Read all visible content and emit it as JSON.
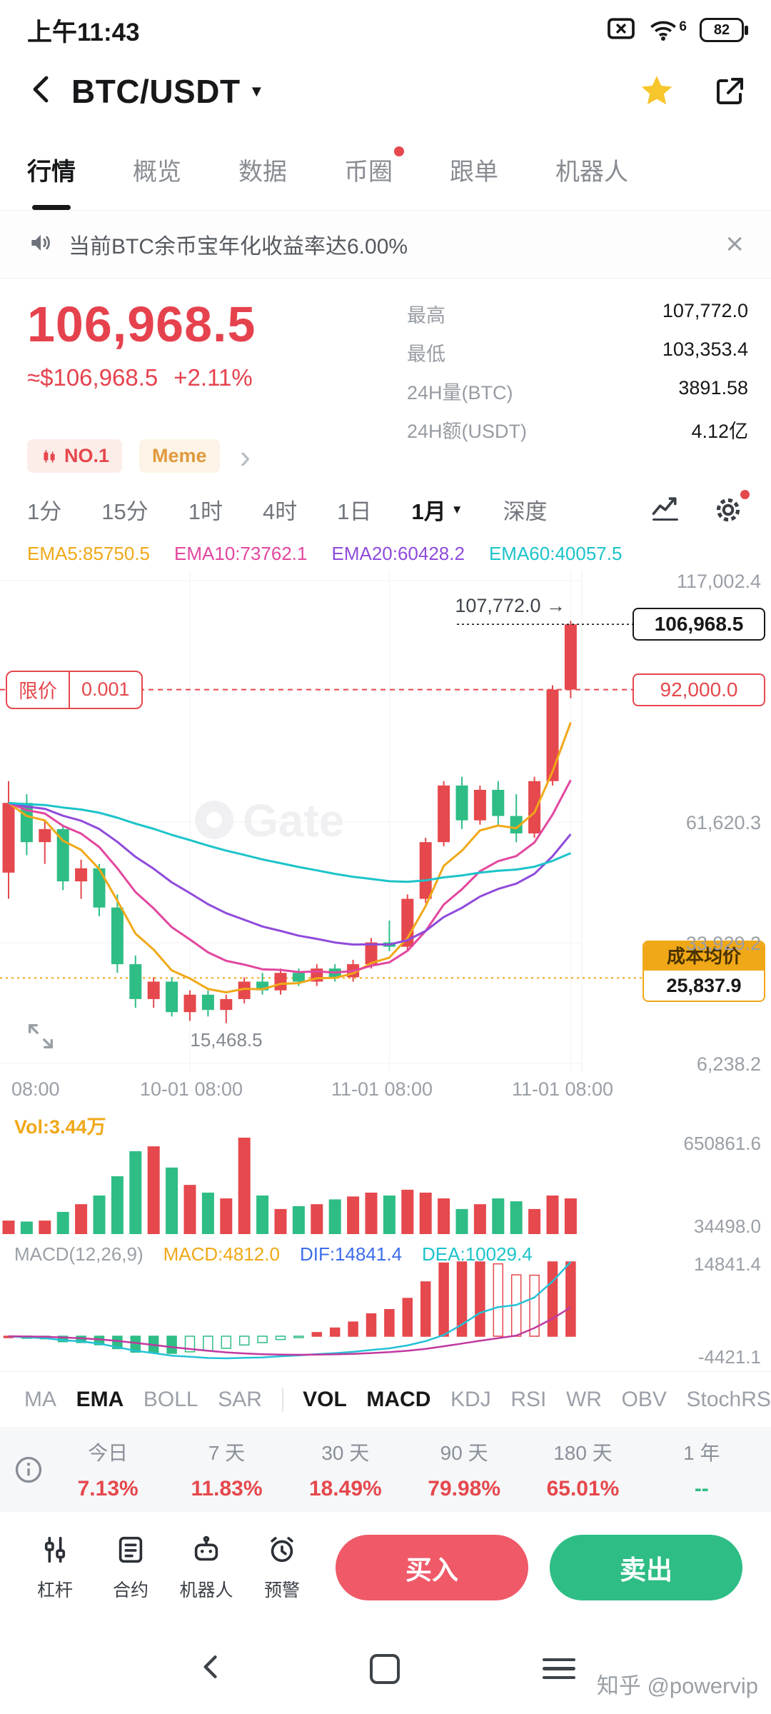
{
  "colors": {
    "up": "#E5484D",
    "down": "#2EBD85",
    "ema5": "#F0A818",
    "ema10": "#E2479F",
    "ema20": "#8F4BDB",
    "ema60": "#1CC3C9",
    "dif_line": "#25C1D6",
    "dea_line": "#C0399F",
    "cost_orange": "#F0A818"
  },
  "status_bar": {
    "time": "上午11:43",
    "wifi": "6",
    "battery": "82"
  },
  "header": {
    "title": "BTC/USDT"
  },
  "nav_tabs": [
    {
      "label": "行情",
      "active": true,
      "dot": false
    },
    {
      "label": "概览",
      "active": false,
      "dot": false
    },
    {
      "label": "数据",
      "active": false,
      "dot": false
    },
    {
      "label": "币圈",
      "active": false,
      "dot": true
    },
    {
      "label": "跟单",
      "active": false,
      "dot": false
    },
    {
      "label": "机器人",
      "active": false,
      "dot": false
    }
  ],
  "announcement": {
    "text": "当前BTC余币宝年化收益率达6.00%"
  },
  "price_panel": {
    "price": "106,968.5",
    "fiat": "≈$106,968.5",
    "change": "+2.11%",
    "stats": [
      {
        "label": "最高",
        "value": "107,772.0"
      },
      {
        "label": "最低",
        "value": "103,353.4"
      },
      {
        "label": "24H量(BTC)",
        "value": "3891.58"
      },
      {
        "label": "24H额(USDT)",
        "value": "4.12亿"
      }
    ],
    "badge_no1": "NO.1",
    "badge_meme": "Meme"
  },
  "toolbar": {
    "timeframes": [
      {
        "label": "1分"
      },
      {
        "label": "15分"
      },
      {
        "label": "1时"
      },
      {
        "label": "4时"
      },
      {
        "label": "1日"
      },
      {
        "label": "1月",
        "active": true,
        "dropdown": true
      },
      {
        "label": "深度"
      }
    ]
  },
  "ema_legend": [
    {
      "label": "EMA5:85750.5",
      "color_key": "ema5"
    },
    {
      "label": "EMA10:73762.1",
      "color_key": "ema10"
    },
    {
      "label": "EMA20:60428.2",
      "color_key": "ema20"
    },
    {
      "label": "EMA60:40057.5",
      "color_key": "ema60"
    }
  ],
  "chart_data": {
    "type": "candlestick",
    "watermark": "Gate",
    "price_range": {
      "top": 117002.4,
      "bottom": 6238.2
    },
    "y_axis_labels": [
      {
        "text": "117,002.4",
        "price": 117002.4
      },
      {
        "text": "61,620.3",
        "price": 61620.3
      },
      {
        "text": "33,929.2",
        "price": 33929.2
      },
      {
        "text": "6,238.2",
        "price": 6238.2
      }
    ],
    "last_price": {
      "text": "106,968.5",
      "price": 106968.5
    },
    "alert_line": {
      "left_label": "限价",
      "left_value": "0.001",
      "text": "92,000.0",
      "price": 92000.0
    },
    "cost_line": {
      "label": "成本均价",
      "text": "25,837.9",
      "price": 25837.9
    },
    "high_annotation": {
      "text": "107,772.0 →",
      "price": 107772.0
    },
    "low_annotation": {
      "text": "15,468.5",
      "price": 15468.5
    },
    "x_labels": [
      "08:00",
      "10-01 08:00",
      "11-01 08:00",
      "11-01 08:00"
    ],
    "candles": [
      [
        50000,
        71000,
        44000,
        66000
      ],
      [
        66000,
        68000,
        54000,
        57000
      ],
      [
        57000,
        62000,
        52000,
        60000
      ],
      [
        60000,
        61000,
        46000,
        48000
      ],
      [
        48000,
        53000,
        44000,
        51000
      ],
      [
        51000,
        52000,
        40000,
        42000
      ],
      [
        42000,
        45000,
        27000,
        29000
      ],
      [
        29000,
        31000,
        19000,
        21000
      ],
      [
        21000,
        26000,
        19000,
        25000
      ],
      [
        25000,
        26000,
        17000,
        18000
      ],
      [
        18000,
        23000,
        16000,
        22000
      ],
      [
        22000,
        23000,
        17000,
        18500
      ],
      [
        18500,
        22000,
        15468.5,
        21000
      ],
      [
        21000,
        26000,
        20000,
        25000
      ],
      [
        25000,
        27000,
        22000,
        23000
      ],
      [
        23000,
        28000,
        22000,
        27000
      ],
      [
        27000,
        28000,
        24000,
        25000
      ],
      [
        25000,
        29000,
        24000,
        28000
      ],
      [
        28000,
        29000,
        25000,
        26000
      ],
      [
        26000,
        30000,
        25000,
        29000
      ],
      [
        29000,
        35000,
        28000,
        34000
      ],
      [
        34000,
        39000,
        32000,
        33000
      ],
      [
        33000,
        45000,
        32000,
        44000
      ],
      [
        44000,
        58000,
        43000,
        57000
      ],
      [
        57000,
        71000,
        56000,
        70000
      ],
      [
        70000,
        72000,
        60000,
        62000
      ],
      [
        62000,
        70000,
        61000,
        69000
      ],
      [
        69000,
        71000,
        61000,
        63000
      ],
      [
        63000,
        68000,
        57000,
        59000
      ],
      [
        59000,
        72000,
        58000,
        71000
      ],
      [
        71000,
        93000,
        70000,
        92000
      ],
      [
        92000,
        107772,
        90000,
        106968.5
      ]
    ],
    "volumes": [
      0.14,
      0.13,
      0.14,
      0.23,
      0.31,
      0.4,
      0.6,
      0.86,
      0.91,
      0.69,
      0.51,
      0.43,
      0.37,
      1.0,
      0.4,
      0.26,
      0.29,
      0.31,
      0.36,
      0.39,
      0.43,
      0.4,
      0.46,
      0.43,
      0.37,
      0.26,
      0.31,
      0.37,
      0.34,
      0.26,
      0.4,
      0.37
    ],
    "volume_panel": {
      "label": "Vol:3.44万",
      "y_max": "650861.6",
      "y_min": "34498.0"
    },
    "macd_panel": {
      "title": "MACD(12,26,9)",
      "macd_label": "MACD:4812.0",
      "dif_label": "DIF:14841.4",
      "dea_label": "DEA:10029.4",
      "y_max": "14841.4",
      "y_min": "-4421.1",
      "y_max_val": 14841.4,
      "y_min_val": -4421.1
    }
  },
  "indicator_tabs": [
    {
      "label": "MA"
    },
    {
      "label": "EMA",
      "active": true
    },
    {
      "label": "BOLL"
    },
    {
      "label": "SAR"
    },
    {
      "divider": true
    },
    {
      "label": "VOL",
      "active": true
    },
    {
      "label": "MACD",
      "active": true
    },
    {
      "label": "KDJ"
    },
    {
      "label": "RSI"
    },
    {
      "label": "WR"
    },
    {
      "label": "OBV"
    },
    {
      "label": "StochRS"
    }
  ],
  "performance": {
    "items": [
      {
        "label": "今日",
        "value": "7.13%"
      },
      {
        "label": "7 天",
        "value": "11.83%"
      },
      {
        "label": "30 天",
        "value": "18.49%"
      },
      {
        "label": "90 天",
        "value": "79.98%"
      },
      {
        "label": "180 天",
        "value": "65.01%"
      },
      {
        "label": "1 年",
        "value": "--"
      }
    ]
  },
  "bottom_bar": {
    "tools": [
      {
        "label": "杠杆",
        "icon": "leverage-icon"
      },
      {
        "label": "合约",
        "icon": "contract-icon"
      },
      {
        "label": "机器人",
        "icon": "robot-icon"
      },
      {
        "label": "预警",
        "icon": "alert-bell-icon"
      }
    ],
    "buy": "买入",
    "sell": "卖出"
  },
  "system_nav": {
    "watermark": "知乎 @powervip"
  }
}
